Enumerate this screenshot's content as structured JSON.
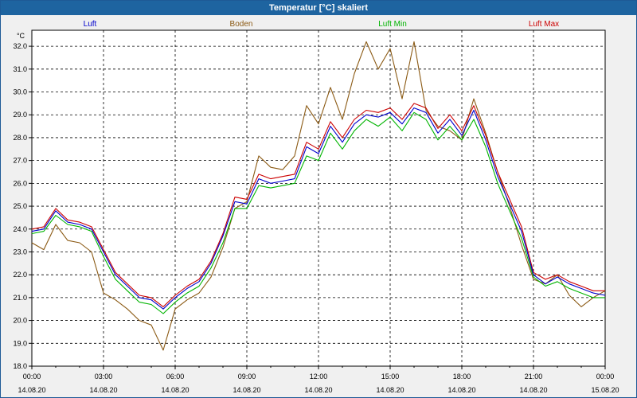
{
  "window": {
    "title": "Temperatur [°C] skaliert"
  },
  "colors": {
    "luft": "#0000cc",
    "boden": "#8b5a14",
    "luft_min": "#00b400",
    "luft_max": "#cc0000",
    "grid": "#000000"
  },
  "chart_data": {
    "type": "line",
    "title": "Temperatur [°C] skaliert",
    "ylabel": "°C",
    "xlabel": "",
    "ylim": [
      18.0,
      32.7
    ],
    "xlim": [
      0,
      24
    ],
    "grid": true,
    "legend_position": "top",
    "y_ticks": [
      "18.0",
      "19.0",
      "20.0",
      "21.0",
      "22.0",
      "23.0",
      "24.0",
      "25.0",
      "26.0",
      "27.0",
      "28.0",
      "29.0",
      "30.0",
      "31.0",
      "32.0"
    ],
    "x_ticks": [
      {
        "time": "00:00",
        "date": "14.08.20"
      },
      {
        "time": "03:00",
        "date": "14.08.20"
      },
      {
        "time": "06:00",
        "date": "14.08.20"
      },
      {
        "time": "09:00",
        "date": "14.08.20"
      },
      {
        "time": "12:00",
        "date": "14.08.20"
      },
      {
        "time": "15:00",
        "date": "14.08.20"
      },
      {
        "time": "18:00",
        "date": "14.08.20"
      },
      {
        "time": "21:00",
        "date": "14.08.20"
      },
      {
        "time": "00:00",
        "date": "15.08.20"
      }
    ],
    "x": [
      0,
      0.5,
      1,
      1.5,
      2,
      2.5,
      3,
      3.5,
      4,
      4.5,
      5,
      5.5,
      6,
      6.5,
      7,
      7.5,
      8,
      8.5,
      9,
      9.5,
      10,
      10.5,
      11,
      11.5,
      12,
      12.5,
      13,
      13.5,
      14,
      14.5,
      15,
      15.5,
      16,
      16.5,
      17,
      17.5,
      18,
      18.5,
      19,
      19.5,
      20,
      20.5,
      21,
      21.5,
      22,
      22.5,
      23,
      23.5,
      24
    ],
    "series": [
      {
        "name": "Luft",
        "key": "luft",
        "values": [
          23.9,
          24.0,
          24.8,
          24.3,
          24.2,
          24.0,
          23.0,
          22.0,
          21.5,
          21.0,
          20.9,
          20.5,
          21.0,
          21.4,
          21.7,
          22.5,
          23.7,
          25.2,
          25.1,
          26.2,
          26.0,
          26.1,
          26.2,
          27.6,
          27.3,
          28.5,
          27.8,
          28.6,
          29.0,
          28.9,
          29.1,
          28.6,
          29.3,
          29.1,
          28.2,
          28.8,
          28.1,
          29.2,
          27.9,
          26.3,
          25.1,
          23.9,
          22.0,
          21.6,
          21.9,
          21.6,
          21.4,
          21.2,
          21.1
        ]
      },
      {
        "name": "Boden",
        "key": "boden",
        "values": [
          23.4,
          23.1,
          24.2,
          23.5,
          23.4,
          23.0,
          21.2,
          20.9,
          20.5,
          20.0,
          19.8,
          18.7,
          20.5,
          20.9,
          21.2,
          21.9,
          23.2,
          24.9,
          25.2,
          27.2,
          26.7,
          26.6,
          27.2,
          29.4,
          28.6,
          30.2,
          28.8,
          30.8,
          32.2,
          31.0,
          31.9,
          29.7,
          32.2,
          29.2,
          28.5,
          28.3,
          27.9,
          29.7,
          28.2,
          26.5,
          25.0,
          23.3,
          21.8,
          21.6,
          22.0,
          21.1,
          20.6,
          21.0,
          21.3
        ]
      },
      {
        "name": "Luft Min",
        "key": "luft_min",
        "values": [
          23.8,
          23.9,
          24.6,
          24.2,
          24.1,
          23.9,
          22.8,
          21.8,
          21.3,
          20.8,
          20.7,
          20.3,
          20.8,
          21.2,
          21.5,
          22.3,
          23.4,
          24.9,
          24.9,
          25.9,
          25.8,
          25.9,
          26.0,
          27.2,
          27.0,
          28.2,
          27.5,
          28.3,
          28.8,
          28.5,
          28.9,
          28.3,
          29.1,
          28.8,
          27.9,
          28.5,
          27.9,
          28.8,
          27.6,
          26.0,
          24.8,
          23.6,
          21.9,
          21.5,
          21.7,
          21.4,
          21.2,
          21.0,
          21.0
        ]
      },
      {
        "name": "Luft Max",
        "key": "luft_max",
        "values": [
          24.0,
          24.1,
          24.9,
          24.4,
          24.3,
          24.1,
          23.1,
          22.1,
          21.6,
          21.1,
          21.0,
          20.6,
          21.1,
          21.5,
          21.8,
          22.6,
          23.8,
          25.4,
          25.3,
          26.4,
          26.2,
          26.3,
          26.4,
          27.8,
          27.5,
          28.7,
          28.0,
          28.8,
          29.2,
          29.1,
          29.3,
          28.8,
          29.5,
          29.3,
          28.4,
          29.0,
          28.3,
          29.4,
          28.1,
          26.5,
          25.3,
          24.1,
          22.1,
          21.8,
          22.0,
          21.7,
          21.5,
          21.3,
          21.3
        ]
      }
    ]
  }
}
